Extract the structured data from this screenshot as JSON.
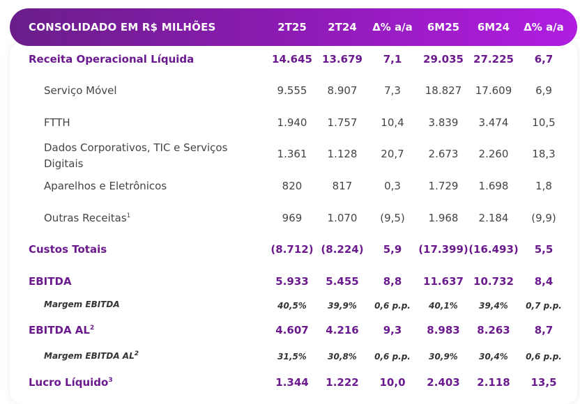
{
  "header": {
    "label": "CONSOLIDADO EM R$ MILHÕES",
    "cols": [
      "2T25",
      "2T24",
      "Δ% a/a",
      "6M25",
      "6M24",
      "Δ% a/a"
    ]
  },
  "rows": [
    {
      "label": "Receita Operacional Líquida",
      "style": "bold",
      "values": [
        "14.645",
        "13.679",
        "7,1",
        "29.035",
        "27.225",
        "6,7"
      ]
    },
    {
      "label": "Serviço Móvel",
      "style": "sub",
      "values": [
        "9.555",
        "8.907",
        "7,3",
        "18.827",
        "17.609",
        "6,9"
      ]
    },
    {
      "label": "FTTH",
      "style": "sub",
      "values": [
        "1.940",
        "1.757",
        "10,4",
        "3.839",
        "3.474",
        "10,5"
      ]
    },
    {
      "label_line1": "Dados Corporativos, TIC e Serviços",
      "label_line2": "Digitais",
      "style": "sub",
      "values": [
        "1.361",
        "1.128",
        "20,7",
        "2.673",
        "2.260",
        "18,3"
      ]
    },
    {
      "label": "Aparelhos e Eletrônicos",
      "style": "sub",
      "values": [
        "820",
        "817",
        "0,3",
        "1.729",
        "1.698",
        "1,8"
      ]
    },
    {
      "label": "Outras Receitas",
      "sup": "1",
      "style": "sub",
      "values": [
        "969",
        "1.070",
        "(9,5)",
        "1.968",
        "2.184",
        "(9,9)"
      ]
    },
    {
      "label": "Custos Totais",
      "style": "bold",
      "values": [
        "(8.712)",
        "(8.224)",
        "5,9",
        "(17.399)",
        "(16.493)",
        "5,5"
      ]
    },
    {
      "label": "EBITDA",
      "style": "bold",
      "values": [
        "5.933",
        "5.455",
        "8,8",
        "11.637",
        "10.732",
        "8,4"
      ]
    },
    {
      "label": "Margem EBITDA",
      "style": "ital",
      "values": [
        "40,5%",
        "39,9%",
        "0,6 p.p.",
        "40,1%",
        "39,4%",
        "0,7 p.p."
      ]
    },
    {
      "label": "EBITDA AL",
      "sup": "2",
      "style": "bold",
      "values": [
        "4.607",
        "4.216",
        "9,3",
        "8.983",
        "8.263",
        "8,7"
      ]
    },
    {
      "label": "Margem EBITDA AL",
      "sup": "2",
      "style": "ital",
      "values": [
        "31,5%",
        "30,8%",
        "0,6 p.p.",
        "30,9%",
        "30,4%",
        "0,6 p.p."
      ]
    },
    {
      "label": "Lucro Líquido",
      "sup": "3",
      "style": "bold",
      "values": [
        "1.344",
        "1.222",
        "10,0",
        "2.403",
        "2.118",
        "13,5"
      ]
    }
  ]
}
